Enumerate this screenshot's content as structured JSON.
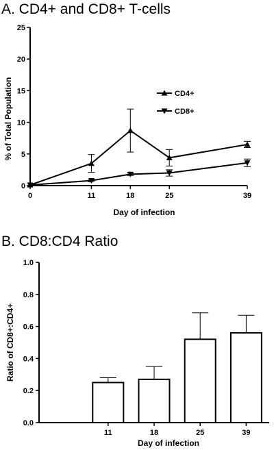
{
  "chart_data": [
    {
      "type": "line",
      "title": "A. CD4+ and CD8+ T-cells",
      "xlabel": "Day of infection",
      "ylabel": "% of Total Population",
      "x": [
        0,
        11,
        18,
        25,
        39
      ],
      "xticks": [
        0,
        11,
        18,
        25,
        39
      ],
      "yticks": [
        0,
        5,
        10,
        15,
        20,
        25
      ],
      "xlim": [
        0,
        39
      ],
      "ylim": [
        0,
        25
      ],
      "grid": false,
      "legend_position": "center-right",
      "series": [
        {
          "name": "CD4+",
          "marker": "triangle-up",
          "values": [
            0.1,
            3.5,
            8.7,
            4.4,
            6.5
          ],
          "errors": [
            0,
            1.4,
            3.4,
            1.3,
            0.5
          ]
        },
        {
          "name": "CD8+",
          "marker": "triangle-down",
          "values": [
            0.1,
            0.8,
            1.8,
            2.0,
            3.6
          ],
          "errors": [
            0,
            0.2,
            0.2,
            0.5,
            0.6
          ]
        }
      ]
    },
    {
      "type": "bar",
      "title": "B. CD8:CD4 Ratio",
      "xlabel": "Day of infection",
      "ylabel": "Ratio of CD8+:CD4+",
      "categories": [
        "",
        "11",
        "18",
        "25",
        "39"
      ],
      "values": [
        0.0,
        0.25,
        0.27,
        0.52,
        0.56
      ],
      "errors": [
        0,
        0.03,
        0.08,
        0.165,
        0.11
      ],
      "yticks": [
        "0.0",
        "0.2",
        "0.4",
        "0.6",
        "0.8",
        "1.0"
      ],
      "ylim": [
        0,
        1.0
      ],
      "grid": false
    }
  ]
}
